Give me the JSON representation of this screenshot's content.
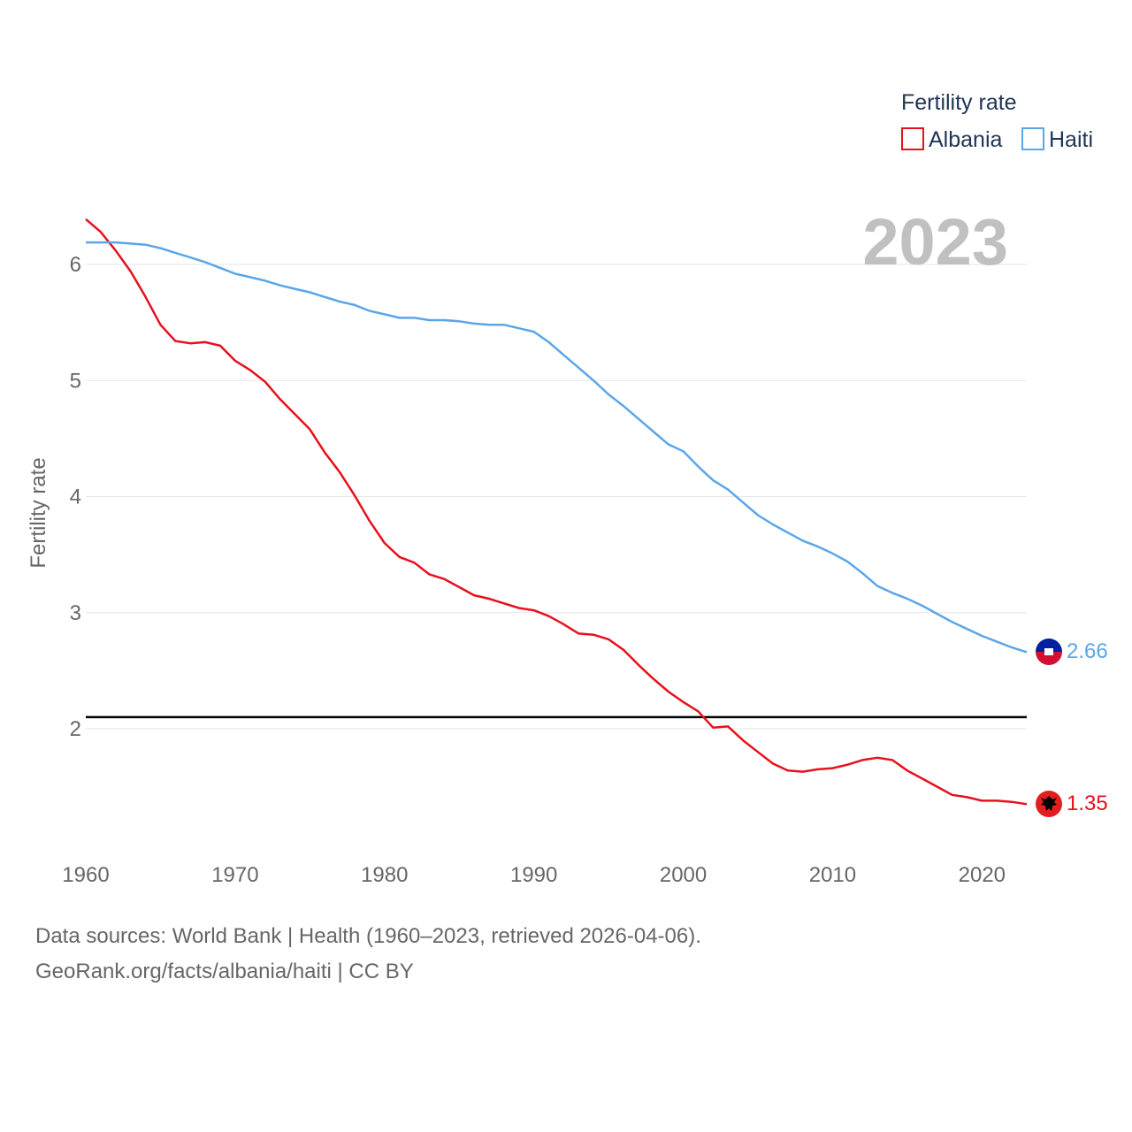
{
  "chart_data": {
    "type": "line",
    "title": "",
    "ylabel": "Fertility rate",
    "xlabel": "",
    "xlim": [
      1960,
      2023
    ],
    "ylim": [
      1,
      6.6
    ],
    "x_ticks": [
      "1960",
      "1970",
      "1980",
      "1990",
      "2000",
      "2010",
      "2020"
    ],
    "y_ticks": [
      "2",
      "3",
      "4",
      "5",
      "6"
    ],
    "year_label": "2023",
    "legend": {
      "title": "Fertility rate",
      "position": "top-right"
    },
    "reference_line": {
      "y": 2.1
    },
    "x": [
      1960,
      1961,
      1962,
      1963,
      1964,
      1965,
      1966,
      1967,
      1968,
      1969,
      1970,
      1971,
      1972,
      1973,
      1974,
      1975,
      1976,
      1977,
      1978,
      1979,
      1980,
      1981,
      1982,
      1983,
      1984,
      1985,
      1986,
      1987,
      1988,
      1989,
      1990,
      1991,
      1992,
      1993,
      1994,
      1995,
      1996,
      1997,
      1998,
      1999,
      2000,
      2001,
      2002,
      2003,
      2004,
      2005,
      2006,
      2007,
      2008,
      2009,
      2010,
      2011,
      2012,
      2013,
      2014,
      2015,
      2016,
      2017,
      2018,
      2019,
      2020,
      2021,
      2022,
      2023
    ],
    "series": [
      {
        "name": "Albania",
        "color": "#e8101c",
        "end_label": "1.35",
        "values": [
          6.39,
          6.28,
          6.12,
          5.94,
          5.72,
          5.48,
          5.34,
          5.32,
          5.33,
          5.3,
          5.17,
          5.09,
          4.99,
          4.84,
          4.71,
          4.58,
          4.38,
          4.21,
          4.01,
          3.79,
          3.6,
          3.48,
          3.43,
          3.33,
          3.29,
          3.22,
          3.15,
          3.12,
          3.08,
          3.04,
          3.02,
          2.97,
          2.9,
          2.82,
          2.81,
          2.77,
          2.68,
          2.55,
          2.43,
          2.32,
          2.23,
          2.15,
          2.01,
          2.02,
          1.9,
          1.8,
          1.7,
          1.64,
          1.63,
          1.65,
          1.66,
          1.69,
          1.73,
          1.75,
          1.73,
          1.64,
          1.57,
          1.5,
          1.43,
          1.41,
          1.38,
          1.38,
          1.37,
          1.35
        ]
      },
      {
        "name": "Haiti",
        "color": "#5ba6e8",
        "end_label": "2.66",
        "values": [
          6.19,
          6.19,
          6.19,
          6.18,
          6.17,
          6.14,
          6.1,
          6.06,
          6.02,
          5.97,
          5.92,
          5.89,
          5.86,
          5.82,
          5.79,
          5.76,
          5.72,
          5.68,
          5.65,
          5.6,
          5.57,
          5.54,
          5.54,
          5.52,
          5.52,
          5.51,
          5.49,
          5.48,
          5.48,
          5.45,
          5.42,
          5.33,
          5.22,
          5.11,
          5.0,
          4.88,
          4.78,
          4.67,
          4.56,
          4.45,
          4.39,
          4.26,
          4.14,
          4.06,
          3.95,
          3.84,
          3.76,
          3.69,
          3.62,
          3.57,
          3.51,
          3.44,
          3.34,
          3.23,
          3.17,
          3.12,
          3.06,
          2.99,
          2.92,
          2.86,
          2.8,
          2.75,
          2.7,
          2.66
        ]
      }
    ]
  },
  "source": {
    "line1": "Data sources: World Bank | Health (1960–2023, retrieved 2026-04-06).",
    "line2": "GeoRank.org/facts/albania/haiti | CC BY"
  }
}
